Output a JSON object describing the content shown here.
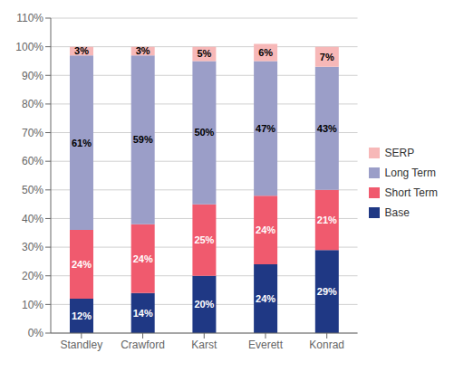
{
  "chart_data": {
    "type": "bar",
    "stacked": true,
    "grid": true,
    "legend": "right",
    "data_labels": true,
    "categories": [
      "Standley",
      "Crawford",
      "Karst",
      "Everett",
      "Konrad"
    ],
    "series": [
      {
        "name": "Base",
        "color": "#1f3884",
        "values": [
          12,
          14,
          20,
          24,
          29
        ],
        "value_labels": [
          "12%",
          "14%",
          "20%",
          "24%",
          "29%"
        ]
      },
      {
        "name": "Short Term",
        "color": "#f05a6e",
        "values": [
          24,
          24,
          25,
          24,
          21
        ],
        "value_labels": [
          "24%",
          "24%",
          "25%",
          "24%",
          "21%"
        ]
      },
      {
        "name": "Long Term",
        "color": "#9b9ec8",
        "values": [
          61,
          59,
          50,
          47,
          43
        ],
        "value_labels": [
          "61%",
          "59%",
          "50%",
          "47%",
          "43%"
        ]
      },
      {
        "name": "SERP",
        "color": "#f7b8b8",
        "values": [
          3,
          3,
          5,
          6,
          7
        ],
        "value_labels": [
          "3%",
          "3%",
          "5%",
          "6%",
          "7%"
        ]
      }
    ],
    "ylim": [
      0,
      110
    ],
    "yticks": [
      {
        "value": 0,
        "label": "0%"
      },
      {
        "value": 10,
        "label": "10%"
      },
      {
        "value": 20,
        "label": "20%"
      },
      {
        "value": 30,
        "label": "30%"
      },
      {
        "value": 40,
        "label": "40%"
      },
      {
        "value": 50,
        "label": "50%"
      },
      {
        "value": 60,
        "label": "60%"
      },
      {
        "value": 70,
        "label": "70%"
      },
      {
        "value": 80,
        "label": "80%"
      },
      {
        "value": 90,
        "label": "90%"
      },
      {
        "value": 100,
        "label": "100%"
      },
      {
        "value": 110,
        "label": "110%"
      }
    ]
  }
}
